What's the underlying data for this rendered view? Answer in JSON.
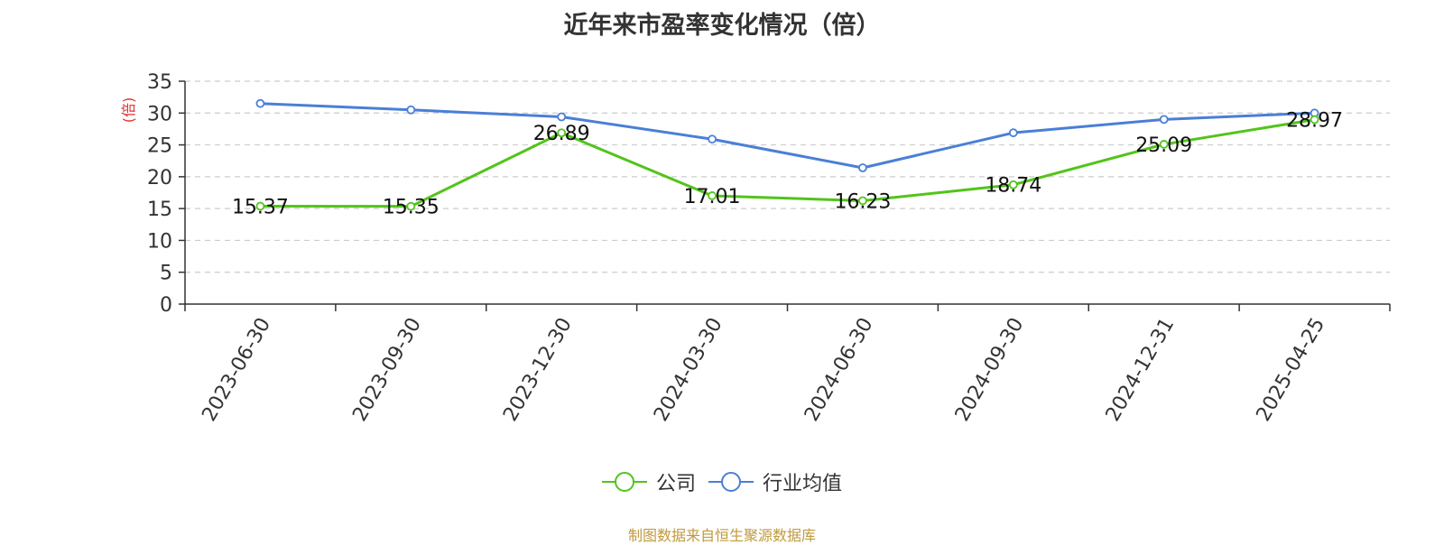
{
  "chart_data": {
    "type": "line",
    "title": "近年来市盈率变化情况（倍）",
    "ylabel": "(倍)",
    "xlabel": "",
    "ylim": [
      0,
      35
    ],
    "yticks": [
      0,
      5,
      10,
      15,
      20,
      25,
      30,
      35
    ],
    "categories": [
      "2023-06-30",
      "2023-09-30",
      "2023-12-30",
      "2024-03-30",
      "2024-06-30",
      "2024-09-30",
      "2024-12-31",
      "2025-04-25"
    ],
    "grid": true,
    "legend_position": "bottom",
    "series": [
      {
        "name": "公司",
        "color": "#52c41a",
        "values": [
          15.37,
          15.35,
          26.89,
          17.01,
          16.23,
          18.74,
          25.09,
          28.97
        ],
        "labels": [
          "15.37",
          "15.35",
          "26.89",
          "17.01",
          "16.23",
          "18.74",
          "25.09",
          "28.97"
        ]
      },
      {
        "name": "行业均值",
        "color": "#4a7fd6",
        "values": [
          31.5,
          30.5,
          29.4,
          25.9,
          21.4,
          26.9,
          29.0,
          30.0
        ]
      }
    ]
  },
  "source_note": "制图数据来自恒生聚源数据库"
}
